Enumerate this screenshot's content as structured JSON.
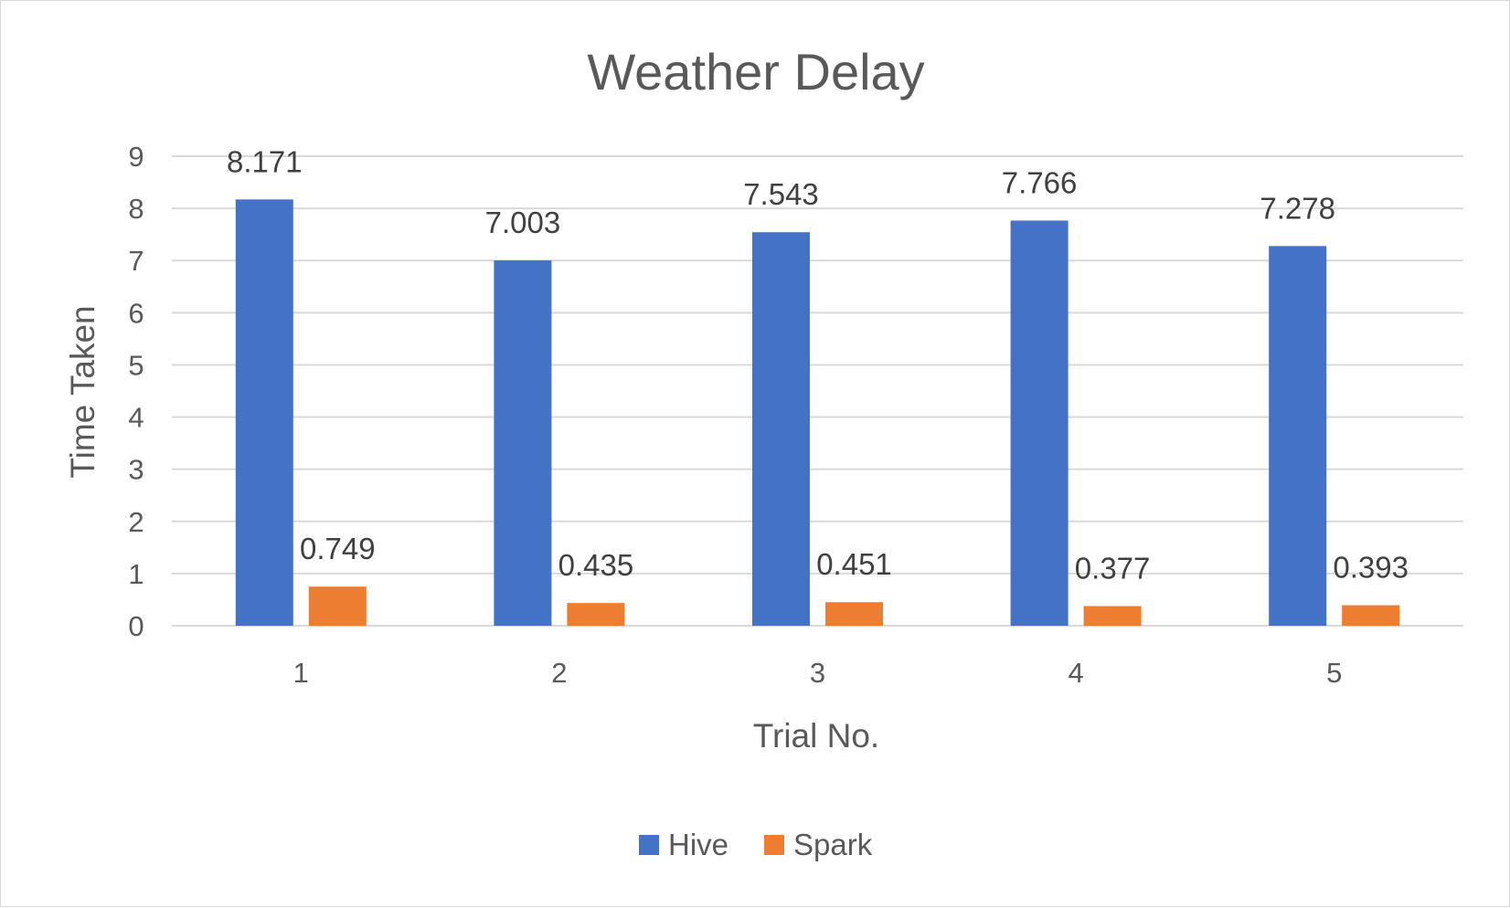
{
  "chart_data": {
    "type": "bar",
    "title": "Weather Delay",
    "xlabel": "Trial No.",
    "ylabel": "Time Taken",
    "categories": [
      "1",
      "2",
      "3",
      "4",
      "5"
    ],
    "series": [
      {
        "name": "Hive",
        "color": "#4472C4",
        "values": [
          8.171,
          7.003,
          7.543,
          7.766,
          7.278
        ]
      },
      {
        "name": "Spark",
        "color": "#ED7D31",
        "values": [
          0.749,
          0.435,
          0.451,
          0.377,
          0.393
        ]
      }
    ],
    "data_labels": [
      [
        "8.171",
        "7.003",
        "7.543",
        "7.766",
        "7.278"
      ],
      [
        "0.749",
        "0.435",
        "0.451",
        "0.377",
        "0.393"
      ]
    ],
    "ylim": [
      0,
      9
    ],
    "yticks": [
      "0",
      "1",
      "2",
      "3",
      "4",
      "5",
      "6",
      "7",
      "8",
      "9"
    ],
    "grid": true,
    "gridline_color": "#d9d9d9",
    "legend_position": "bottom"
  }
}
